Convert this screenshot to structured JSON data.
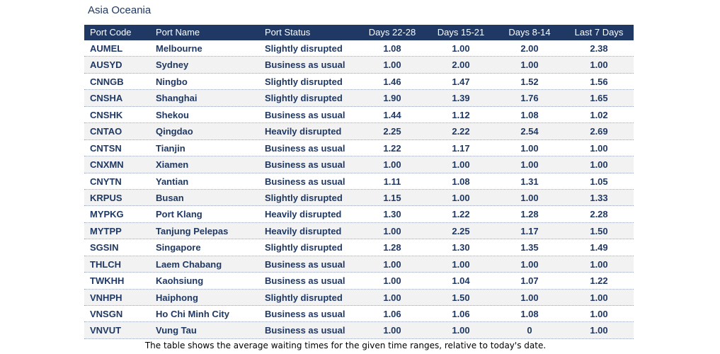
{
  "title": "Asia Oceania",
  "table": {
    "headers": [
      "Port Code",
      "Port Name",
      "Port Status",
      "Days 22-28",
      "Days 15-21",
      "Days 8-14",
      "Last 7 Days"
    ],
    "rows": [
      [
        "AUMEL",
        "Melbourne",
        "Slightly disrupted",
        "1.08",
        "1.00",
        "2.00",
        "2.38"
      ],
      [
        "AUSYD",
        "Sydney",
        "Business as usual",
        "1.00",
        "2.00",
        "1.00",
        "1.00"
      ],
      [
        "CNNGB",
        "Ningbo",
        "Slightly disrupted",
        "1.46",
        "1.47",
        "1.52",
        "1.56"
      ],
      [
        "CNSHA",
        "Shanghai",
        "Slightly disrupted",
        "1.90",
        "1.39",
        "1.76",
        "1.65"
      ],
      [
        "CNSHK",
        "Shekou",
        "Business as usual",
        "1.44",
        "1.12",
        "1.08",
        "1.02"
      ],
      [
        "CNTAO",
        "Qingdao",
        "Heavily disrupted",
        "2.25",
        "2.22",
        "2.54",
        "2.69"
      ],
      [
        "CNTSN",
        "Tianjin",
        "Business as usual",
        "1.22",
        "1.17",
        "1.00",
        "1.00"
      ],
      [
        "CNXMN",
        "Xiamen",
        "Business as usual",
        "1.00",
        "1.00",
        "1.00",
        "1.00"
      ],
      [
        "CNYTN",
        "Yantian",
        "Business as usual",
        "1.11",
        "1.08",
        "1.31",
        "1.05"
      ],
      [
        "KRPUS",
        "Busan",
        "Slightly disrupted",
        "1.15",
        "1.00",
        "1.00",
        "1.33"
      ],
      [
        "MYPKG",
        "Port Klang",
        "Heavily disrupted",
        "1.30",
        "1.22",
        "1.28",
        "2.28"
      ],
      [
        "MYTPP",
        "Tanjung Pelepas",
        "Heavily disrupted",
        "1.00",
        "2.25",
        "1.17",
        "1.50"
      ],
      [
        "SGSIN",
        "Singapore",
        "Slightly disrupted",
        "1.28",
        "1.30",
        "1.35",
        "1.49"
      ],
      [
        "THLCH",
        "Laem Chabang",
        "Business as usual",
        "1.00",
        "1.00",
        "1.00",
        "1.00"
      ],
      [
        "TWKHH",
        "Kaohsiung",
        "Business as usual",
        "1.00",
        "1.04",
        "1.07",
        "1.22"
      ],
      [
        "VNHPH",
        "Haiphong",
        "Slightly disrupted",
        "1.00",
        "1.50",
        "1.00",
        "1.00"
      ],
      [
        "VNSGN",
        "Ho Chi Minh City",
        "Business as usual",
        "1.06",
        "1.06",
        "1.08",
        "1.00"
      ],
      [
        "VNVUT",
        "Vung Tau",
        "Business as usual",
        "1.00",
        "1.00",
        "0",
        "1.00"
      ]
    ]
  },
  "caption": "The table shows the average waiting times for the given time ranges, relative to today's date."
}
